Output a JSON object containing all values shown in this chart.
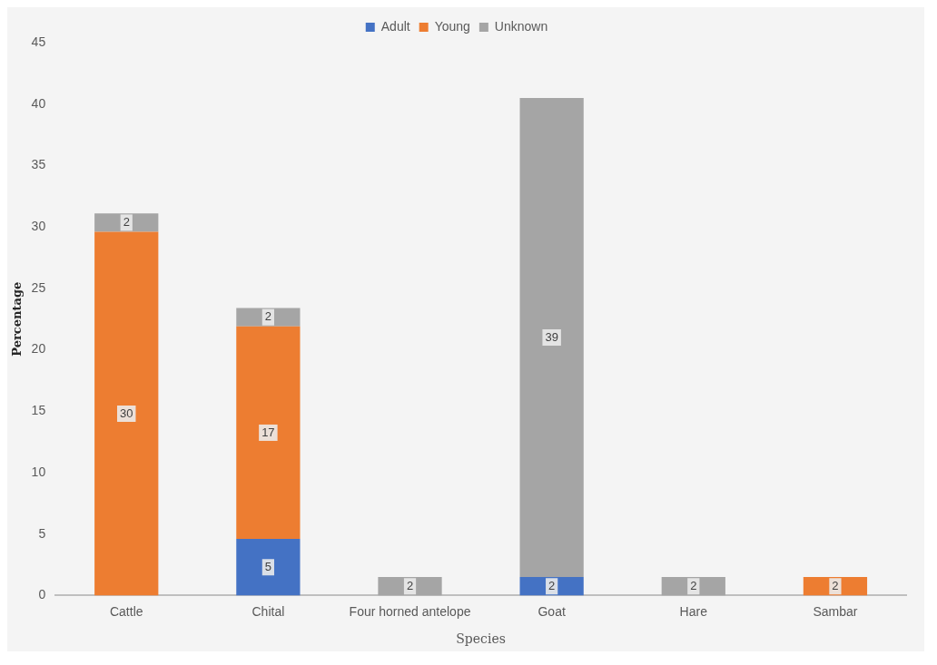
{
  "chart_data": {
    "type": "bar",
    "stacked": true,
    "xlabel": "Species",
    "ylabel": "Percentage",
    "categories": [
      "Cattle",
      "Chital",
      "Four horned antelope",
      "Goat",
      "Hare",
      "Sambar"
    ],
    "series": [
      {
        "name": "Adult",
        "color": "#4472c4",
        "values": [
          null,
          4.6,
          null,
          1.5,
          null,
          null
        ],
        "value_labels": [
          null,
          "5",
          null,
          "2",
          null,
          null
        ]
      },
      {
        "name": "Young",
        "color": "#ed7d31",
        "values": [
          29.6,
          17.3,
          null,
          null,
          null,
          1.5
        ],
        "value_labels": [
          "30",
          "17",
          null,
          null,
          null,
          "2"
        ]
      },
      {
        "name": "Unknown",
        "color": "#a5a5a5",
        "values": [
          1.5,
          1.5,
          1.5,
          39,
          1.5,
          null
        ],
        "value_labels": [
          "2",
          "2",
          "2",
          "39",
          "2",
          null
        ]
      }
    ],
    "ylim": [
      0,
      45
    ],
    "yticks": [
      0,
      5,
      10,
      15,
      20,
      25,
      30,
      35,
      40,
      45
    ],
    "grid": false,
    "legend": "top"
  }
}
